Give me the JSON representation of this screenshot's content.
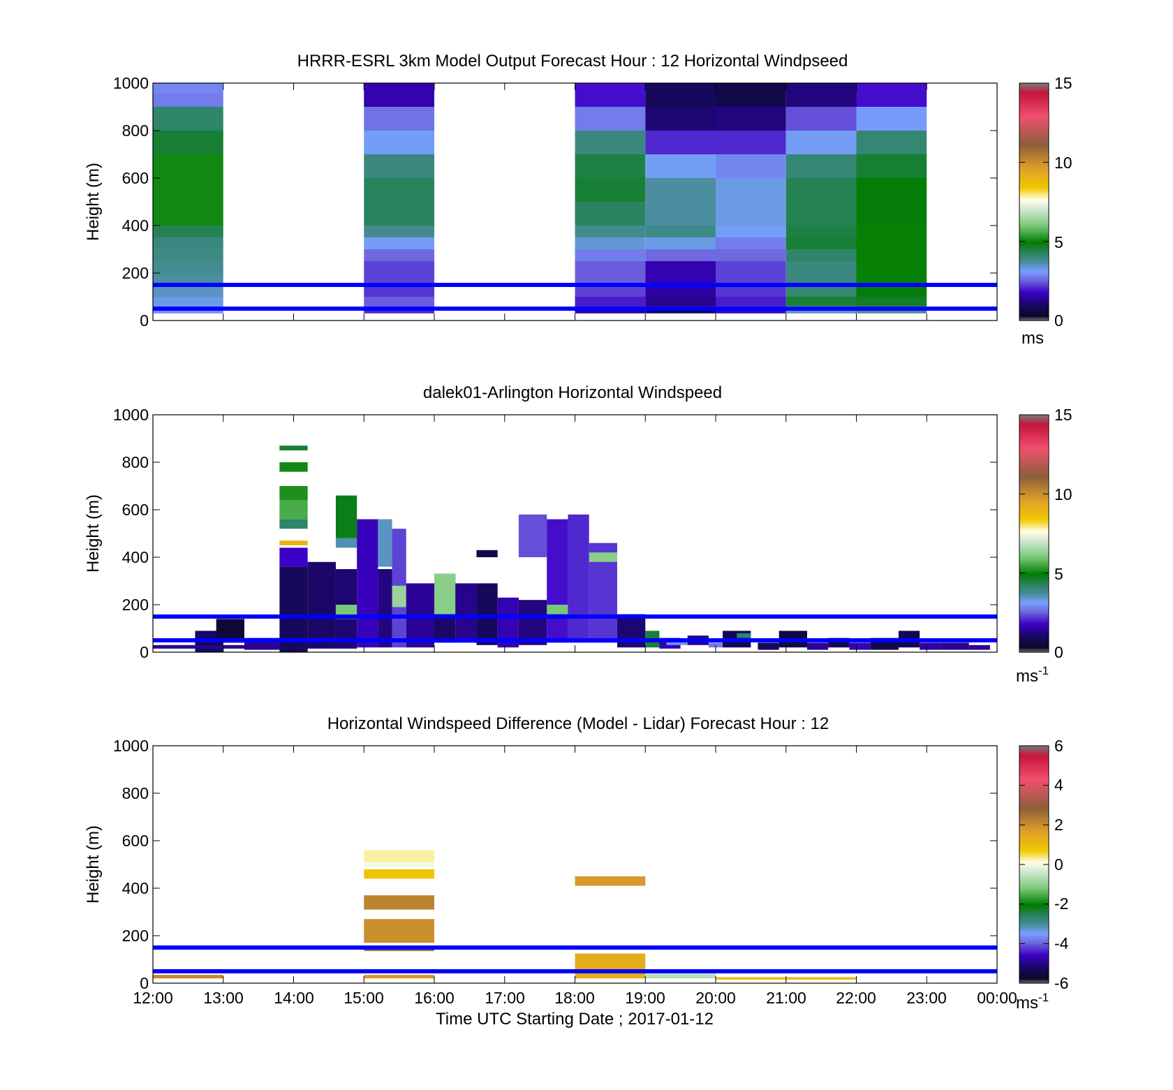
{
  "figure": {
    "xlabel": "Time UTC  Starting Date ; 2017-01-12",
    "x_ticks": [
      "12:00",
      "13:00",
      "14:00",
      "15:00",
      "16:00",
      "17:00",
      "18:00",
      "19:00",
      "20:00",
      "21:00",
      "22:00",
      "23:00",
      "00:00"
    ]
  },
  "chart_data": [
    {
      "type": "heatmap",
      "title": "HRRR-ESRL 3km Model Output   Forecast Hour : 12 Horizontal Windpseed",
      "ylabel": "Height (m)",
      "xlim_hours": [
        12,
        24
      ],
      "ylim": [
        0,
        1000
      ],
      "y_ticks": [
        "0",
        "200",
        "400",
        "600",
        "800",
        "1000"
      ],
      "colorbar": {
        "ticks": [
          "0",
          "5",
          "10",
          "15"
        ],
        "range": [
          0,
          15
        ],
        "unit": "ms",
        "unit_sup": ""
      },
      "reference_lines_m": [
        50,
        150
      ],
      "reference_line_color": "#0000ff",
      "columns": [
        {
          "start": 12,
          "end": 13,
          "cells": [
            [
              960,
              1000,
              2.9
            ],
            [
              900,
              960,
              2.8
            ],
            [
              800,
              900,
              4.2
            ],
            [
              700,
              800,
              4.6
            ],
            [
              400,
              700,
              5.1
            ],
            [
              350,
              400,
              4.4
            ],
            [
              300,
              350,
              4.0
            ],
            [
              250,
              300,
              3.9
            ],
            [
              200,
              250,
              3.8
            ],
            [
              150,
              200,
              3.7
            ],
            [
              100,
              150,
              3.5
            ],
            [
              60,
              100,
              3.3
            ],
            [
              30,
              60,
              3.0
            ]
          ]
        },
        {
          "start": 15,
          "end": 16,
          "cells": [
            [
              900,
              1000,
              1.6
            ],
            [
              800,
              900,
              2.7
            ],
            [
              700,
              800,
              3.2
            ],
            [
              600,
              700,
              4.0
            ],
            [
              400,
              600,
              4.3
            ],
            [
              350,
              400,
              3.8
            ],
            [
              300,
              350,
              3.2
            ],
            [
              250,
              300,
              2.6
            ],
            [
              150,
              250,
              2.3
            ],
            [
              100,
              150,
              2.2
            ],
            [
              60,
              100,
              2.5
            ],
            [
              30,
              60,
              2.1
            ]
          ]
        },
        {
          "start": 18,
          "end": 19,
          "cells": [
            [
              900,
              1000,
              1.9
            ],
            [
              800,
              900,
              2.8
            ],
            [
              700,
              800,
              4.0
            ],
            [
              600,
              700,
              4.5
            ],
            [
              500,
              600,
              4.6
            ],
            [
              400,
              500,
              4.3
            ],
            [
              350,
              400,
              3.8
            ],
            [
              300,
              350,
              3.4
            ],
            [
              250,
              300,
              2.8
            ],
            [
              150,
              250,
              2.5
            ],
            [
              100,
              150,
              2.3
            ],
            [
              60,
              100,
              2.0
            ],
            [
              30,
              60,
              1.4
            ]
          ]
        },
        {
          "start": 19,
          "end": 20,
          "cells": [
            [
              900,
              1000,
              0.9
            ],
            [
              800,
              900,
              1.1
            ],
            [
              700,
              800,
              2.1
            ],
            [
              600,
              700,
              3.2
            ],
            [
              400,
              600,
              3.7
            ],
            [
              350,
              400,
              3.9
            ],
            [
              300,
              350,
              3.3
            ],
            [
              250,
              300,
              2.6
            ],
            [
              150,
              250,
              1.6
            ],
            [
              100,
              150,
              1.5
            ],
            [
              60,
              100,
              1.3
            ],
            [
              30,
              60,
              1.0
            ]
          ]
        },
        {
          "start": 20,
          "end": 21,
          "cells": [
            [
              900,
              1000,
              0.7
            ],
            [
              800,
              900,
              1.2
            ],
            [
              700,
              800,
              2.1
            ],
            [
              600,
              700,
              2.9
            ],
            [
              400,
              600,
              3.3
            ],
            [
              350,
              400,
              3.2
            ],
            [
              300,
              350,
              2.8
            ],
            [
              250,
              300,
              2.6
            ],
            [
              150,
              250,
              2.3
            ],
            [
              100,
              150,
              2.2
            ],
            [
              60,
              100,
              2.0
            ],
            [
              30,
              60,
              1.8
            ]
          ]
        },
        {
          "start": 21,
          "end": 22,
          "cells": [
            [
              900,
              1000,
              1.2
            ],
            [
              800,
              900,
              2.4
            ],
            [
              700,
              800,
              3.2
            ],
            [
              600,
              700,
              4.1
            ],
            [
              400,
              600,
              4.4
            ],
            [
              350,
              400,
              4.5
            ],
            [
              300,
              350,
              4.6
            ],
            [
              250,
              300,
              4.2
            ],
            [
              150,
              250,
              4.0
            ],
            [
              100,
              150,
              4.1
            ],
            [
              60,
              100,
              4.6
            ],
            [
              30,
              60,
              3.5
            ]
          ]
        },
        {
          "start": 22,
          "end": 23,
          "cells": [
            [
              900,
              1000,
              1.9
            ],
            [
              800,
              900,
              3.1
            ],
            [
              700,
              800,
              4.1
            ],
            [
              600,
              700,
              4.6
            ],
            [
              400,
              600,
              4.9
            ],
            [
              350,
              400,
              5.0
            ],
            [
              300,
              350,
              5.0
            ],
            [
              250,
              300,
              5.0
            ],
            [
              150,
              250,
              5.0
            ],
            [
              100,
              150,
              4.9
            ],
            [
              60,
              100,
              4.7
            ],
            [
              30,
              60,
              3.7
            ]
          ]
        }
      ]
    },
    {
      "type": "heatmap",
      "title": "dalek01-Arlington  Horizontal Windspeed",
      "ylabel": "Height (m)",
      "xlim_hours": [
        12,
        24
      ],
      "ylim": [
        0,
        1000
      ],
      "y_ticks": [
        "0",
        "200",
        "400",
        "600",
        "800",
        "1000"
      ],
      "colorbar": {
        "ticks": [
          "0",
          "5",
          "10",
          "15"
        ],
        "range": [
          0,
          15
        ],
        "unit": "ms",
        "unit_sup": "-1"
      },
      "reference_lines_m": [
        50,
        150
      ],
      "reference_line_color": "#0000ff",
      "cells": [
        [
          13.0,
          12.6,
          13.0,
          0,
          90,
          1.0
        ],
        [
          12.6,
          13.0,
          20,
          60,
          0.8
        ],
        [
          12.9,
          13.3,
          40,
          140,
          0.5
        ],
        [
          13.3,
          13.8,
          10,
          60,
          1.4
        ],
        [
          12.0,
          14.9,
          15,
          30,
          1.3
        ],
        [
          14.0,
          13.8,
          14.2,
          20,
          60,
          0.8
        ],
        [
          13.8,
          14.2,
          360,
          440,
          1.8
        ],
        [
          13.8,
          14.2,
          640,
          700,
          5.2
        ],
        [
          13.8,
          14.2,
          560,
          640,
          5.6
        ],
        [
          13.8,
          14.2,
          520,
          560,
          4.2
        ],
        [
          14.0,
          13.8,
          14.2,
          450,
          470,
          9.0
        ],
        [
          13.8,
          14.2,
          760,
          800,
          5.1
        ],
        [
          13.8,
          14.2,
          850,
          870,
          4.6
        ],
        [
          13.8,
          14.2,
          0,
          360,
          0.9
        ],
        [
          14.2,
          14.6,
          20,
          380,
          1.0
        ],
        [
          14.4,
          14.6,
          14.9,
          20,
          350,
          1.1
        ],
        [
          14.6,
          14.9,
          480,
          660,
          4.8
        ],
        [
          14.6,
          14.9,
          440,
          480,
          3.6
        ],
        [
          14.6,
          14.9,
          140,
          200,
          6.0
        ],
        [
          14.9,
          15.2,
          20,
          560,
          1.7
        ],
        [
          15.0,
          15.2,
          15.4,
          360,
          560,
          3.5
        ],
        [
          15.2,
          15.4,
          20,
          350,
          1.2
        ],
        [
          15.4,
          15.6,
          20,
          520,
          2.3
        ],
        [
          15.4,
          15.6,
          190,
          280,
          6.4
        ],
        [
          15.6,
          16.0,
          20,
          290,
          1.4
        ],
        [
          16.0,
          16.0,
          16.3,
          40,
          330,
          1.0
        ],
        [
          16.0,
          16.3,
          160,
          330,
          6.2
        ],
        [
          16.3,
          16.6,
          40,
          290,
          1.3
        ],
        [
          16.6,
          16.9,
          30,
          290,
          0.9
        ],
        [
          16.9,
          17.2,
          20,
          230,
          1.6
        ],
        [
          17.0,
          16.6,
          16.9,
          400,
          430,
          0.7
        ],
        [
          17.2,
          17.6,
          30,
          220,
          1.2
        ],
        [
          17.2,
          17.6,
          400,
          580,
          2.4
        ],
        [
          17.6,
          17.9,
          40,
          560,
          1.9
        ],
        [
          17.6,
          17.9,
          160,
          200,
          6.0
        ],
        [
          18.0,
          17.9,
          18.2,
          40,
          580,
          2.1
        ],
        [
          18.2,
          18.6,
          40,
          460,
          2.2
        ],
        [
          18.2,
          18.6,
          380,
          420,
          6.2
        ],
        [
          18.6,
          19.0,
          20,
          160,
          1.1
        ],
        [
          19.0,
          19.2,
          20,
          90,
          4.6
        ],
        [
          19.0,
          19.2,
          19.5,
          15,
          60,
          1.6
        ],
        [
          19.3,
          19.6,
          30,
          50,
          3.0
        ],
        [
          19.6,
          19.9,
          30,
          70,
          1.3
        ],
        [
          19.9,
          20.1,
          20,
          40,
          2.8
        ],
        [
          20.1,
          20.5,
          20,
          90,
          0.8
        ],
        [
          20.0,
          20.3,
          20.5,
          60,
          80,
          4.2
        ],
        [
          20.6,
          20.9,
          10,
          40,
          0.9
        ],
        [
          20.9,
          21.3,
          20,
          90,
          0.6
        ],
        [
          21.3,
          21.6,
          10,
          40,
          1.4
        ],
        [
          21.6,
          21.9,
          20,
          60,
          0.8
        ],
        [
          21.0,
          21.9,
          22.2,
          10,
          40,
          1.6
        ],
        [
          22.2,
          22.6,
          10,
          60,
          0.7
        ],
        [
          22.6,
          22.9,
          20,
          90,
          0.8
        ],
        [
          22.9,
          23.2,
          10,
          40,
          1.5
        ],
        [
          23.2,
          23.6,
          10,
          40,
          1.3
        ],
        [
          23.0,
          23.6,
          23.9,
          10,
          30,
          1.4
        ]
      ]
    },
    {
      "type": "heatmap",
      "title": "Horizontal Windspeed Difference (Model - Lidar) Forecast Hour : 12",
      "ylabel": "Height (m)",
      "xlim_hours": [
        12,
        24
      ],
      "ylim": [
        0,
        1000
      ],
      "y_ticks": [
        "0",
        "200",
        "400",
        "600",
        "800",
        "1000"
      ],
      "colorbar": {
        "ticks": [
          "-6",
          "-4",
          "-2",
          "0",
          "2",
          "4",
          "6"
        ],
        "range": [
          -6,
          6
        ],
        "unit": "ms",
        "unit_sup": "-1"
      },
      "reference_lines_m": [
        50,
        150
      ],
      "reference_line_color": "#0000ff",
      "cells": [
        [
          12.0,
          13.0,
          20,
          35,
          2.1
        ],
        [
          15.0,
          16.0,
          510,
          560,
          0.3
        ],
        [
          15.0,
          16.0,
          490,
          510,
          0.0
        ],
        [
          15.0,
          16.0,
          440,
          480,
          0.8
        ],
        [
          15.0,
          16.0,
          310,
          370,
          2.2
        ],
        [
          15.0,
          16.0,
          170,
          270,
          2.0
        ],
        [
          15.0,
          16.0,
          135,
          150,
          2.5
        ],
        [
          15.0,
          16.0,
          20,
          35,
          1.8
        ],
        [
          18.0,
          19.0,
          410,
          450,
          1.8
        ],
        [
          18.0,
          19.0,
          20,
          125,
          1.4
        ],
        [
          19.0,
          20.0,
          20,
          40,
          -0.6
        ],
        [
          20.0,
          22.0,
          15,
          25,
          1.0
        ]
      ]
    }
  ]
}
